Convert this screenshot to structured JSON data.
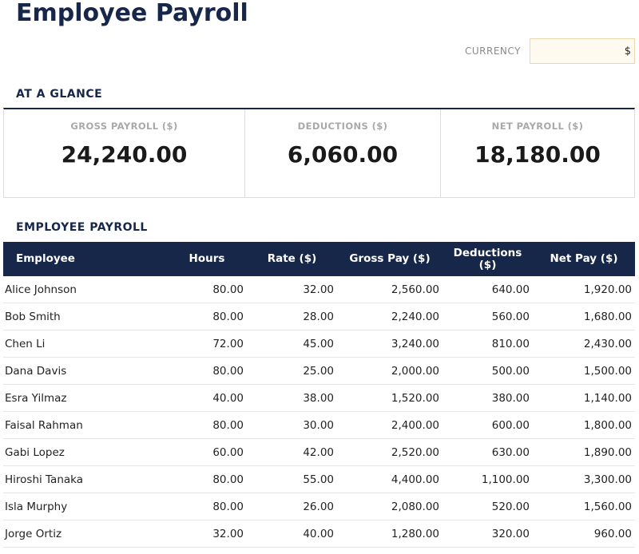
{
  "header": {
    "title": "Employee Payroll",
    "currency_label": "CURRENCY",
    "currency_value": "$"
  },
  "glance": {
    "section_title": "AT A GLANCE",
    "cards": [
      {
        "label": "GROSS PAYROLL ($)",
        "value": "24,240.00"
      },
      {
        "label": "DEDUCTIONS ($)",
        "value": "6,060.00"
      },
      {
        "label": "NET PAYROLL ($)",
        "value": "18,180.00"
      }
    ]
  },
  "payroll": {
    "section_title": "EMPLOYEE PAYROLL",
    "columns": [
      "Employee",
      "Hours",
      "Rate ($)",
      "Gross Pay ($)",
      "Deductions ($)",
      "Net Pay ($)"
    ],
    "rows": [
      [
        "Alice Johnson",
        "80.00",
        "32.00",
        "2,560.00",
        "640.00",
        "1,920.00"
      ],
      [
        "Bob Smith",
        "80.00",
        "28.00",
        "2,240.00",
        "560.00",
        "1,680.00"
      ],
      [
        "Chen Li",
        "72.00",
        "45.00",
        "3,240.00",
        "810.00",
        "2,430.00"
      ],
      [
        "Dana Davis",
        "80.00",
        "25.00",
        "2,000.00",
        "500.00",
        "1,500.00"
      ],
      [
        "Esra Yilmaz",
        "40.00",
        "38.00",
        "1,520.00",
        "380.00",
        "1,140.00"
      ],
      [
        "Faisal Rahman",
        "80.00",
        "30.00",
        "2,400.00",
        "600.00",
        "1,800.00"
      ],
      [
        "Gabi Lopez",
        "60.00",
        "42.00",
        "2,520.00",
        "630.00",
        "1,890.00"
      ],
      [
        "Hiroshi Tanaka",
        "80.00",
        "55.00",
        "4,400.00",
        "1,100.00",
        "3,300.00"
      ],
      [
        "Isla Murphy",
        "80.00",
        "26.00",
        "2,080.00",
        "520.00",
        "1,560.00"
      ],
      [
        "Jorge Ortiz",
        "32.00",
        "40.00",
        "1,280.00",
        "320.00",
        "960.00"
      ]
    ]
  }
}
